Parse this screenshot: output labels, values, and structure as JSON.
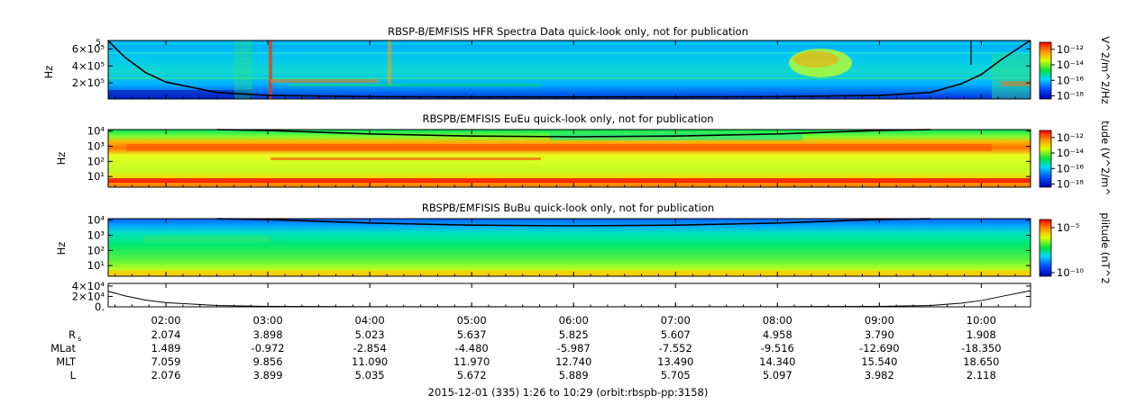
{
  "chart_data": [
    {
      "type": "heatmap",
      "title": "RBSP-B/EMFISIS  HFR Spectra Data quick-look only, not for publication",
      "ylabel": "Hz",
      "yticks": [
        {
          "label": "6×10⁵",
          "value": 600000
        },
        {
          "label": "4×10⁵",
          "value": 400000
        },
        {
          "label": "2×10⁵",
          "value": 200000
        }
      ],
      "ytick_top": "5",
      "ylim": [
        10000,
        700000
      ],
      "colorbar_label": "V^2/m^2/Hz",
      "colorbar_ticks": [
        "10⁻¹²",
        "10⁻¹⁴",
        "10⁻¹⁶",
        "10⁻¹⁸"
      ],
      "colorbar_values": [
        -12,
        -14,
        -16,
        -18
      ]
    },
    {
      "type": "heatmap",
      "title": "RBSPB/EMFISIS  EuEu quick-look only, not for publication",
      "ylabel": "Hz",
      "yticks": [
        {
          "label": "10⁴",
          "value": 4
        },
        {
          "label": "10³",
          "value": 3
        },
        {
          "label": "10²",
          "value": 2
        },
        {
          "label": "10¹",
          "value": 1
        }
      ],
      "ylim": [
        0.3,
        4.1
      ],
      "colorbar_label": "tude (V^2/m^",
      "colorbar_ticks": [
        "10⁻¹²",
        "10⁻¹⁴",
        "10⁻¹⁶",
        "10⁻¹⁸"
      ],
      "colorbar_values": [
        -12,
        -14,
        -16,
        -18
      ]
    },
    {
      "type": "heatmap",
      "title": "RBSPB/EMFISIS  BuBu quick-look only, not for publication",
      "ylabel": "Hz",
      "yticks": [
        {
          "label": "10⁴",
          "value": 4
        },
        {
          "label": "10³",
          "value": 3
        },
        {
          "label": "10²",
          "value": 2
        },
        {
          "label": "10¹",
          "value": 1
        }
      ],
      "ylim": [
        0.3,
        4.1
      ],
      "colorbar_label": "plitude (nT^2",
      "colorbar_ticks": [
        "10⁻⁵",
        "10⁻¹⁰"
      ],
      "colorbar_values": [
        -5,
        -10
      ]
    },
    {
      "type": "line",
      "yticks": [
        {
          "label": "4×10⁴",
          "value": 40000
        },
        {
          "label": "2×10⁴",
          "value": 20000
        },
        {
          "label": "0.",
          "value": 0
        }
      ],
      "ylim": [
        0,
        45000
      ],
      "x": [
        1.43,
        1.6,
        1.8,
        2.0,
        2.5,
        3.0,
        4.0,
        5.0,
        6.0,
        7.0,
        8.0,
        9.0,
        9.5,
        9.8,
        10.0,
        10.2,
        10.48
      ],
      "y": [
        30000,
        21000,
        13000,
        8000,
        2500,
        900,
        300,
        150,
        100,
        150,
        300,
        900,
        2500,
        7000,
        12000,
        20000,
        31000
      ]
    }
  ],
  "xaxis": {
    "range": [
      1.4333,
      10.4833
    ],
    "ticks": [
      {
        "label": "02:00",
        "value": 2
      },
      {
        "label": "03:00",
        "value": 3
      },
      {
        "label": "04:00",
        "value": 4
      },
      {
        "label": "05:00",
        "value": 5
      },
      {
        "label": "06:00",
        "value": 6
      },
      {
        "label": "07:00",
        "value": 7
      },
      {
        "label": "08:00",
        "value": 8
      },
      {
        "label": "09:00",
        "value": 9
      },
      {
        "label": "10:00",
        "value": 10
      }
    ]
  },
  "ephemeris": [
    {
      "label": "R",
      "sub": "s",
      "values": [
        "2.074",
        "3.898",
        "5.023",
        "5.637",
        "5.825",
        "5.607",
        "4.958",
        "3.790",
        "1.908"
      ]
    },
    {
      "label": "MLat",
      "sub": "",
      "values": [
        "1.489",
        "-0.972",
        "-2.854",
        "-4.480",
        "-5.987",
        "-7.552",
        "-9.516",
        "-12.690",
        "-18.350"
      ]
    },
    {
      "label": "MLT",
      "sub": "",
      "values": [
        "7.059",
        "9.856",
        "11.090",
        "11.970",
        "12.740",
        "13.490",
        "14.340",
        "15.540",
        "18.650"
      ]
    },
    {
      "label": "L",
      "sub": "",
      "values": [
        "2.076",
        "3.899",
        "5.035",
        "5.672",
        "5.889",
        "5.705",
        "5.097",
        "3.982",
        "2.118"
      ]
    }
  ],
  "footer": "2015-12-01 (335) 1:26 to 10:29 (orbit:rbspb-pp:3158)",
  "colors": {
    "low": "#0000c8",
    "mid": "#00e040",
    "high": "#ff0000"
  }
}
